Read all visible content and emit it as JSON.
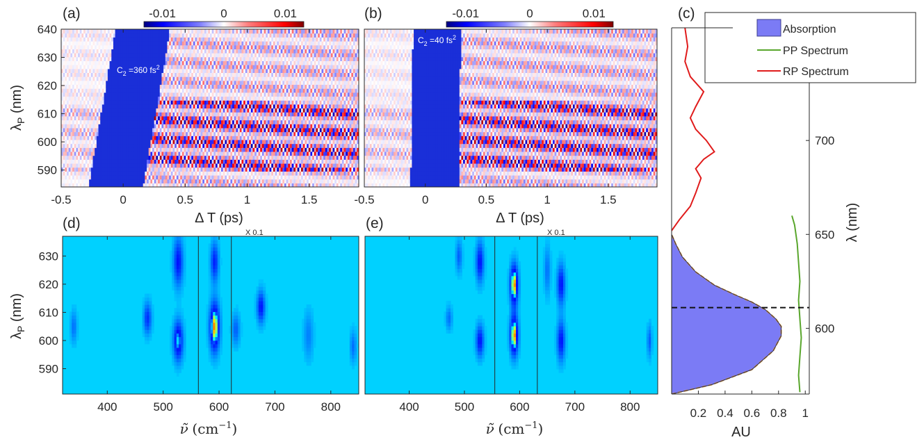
{
  "chart_data": [
    {
      "type": "heatmap",
      "panel": "(a)",
      "x_label": "Δ T (ps)",
      "y_label": "λP (nm)",
      "xlim": [
        -0.5,
        1.9
      ],
      "ylim": [
        584,
        640
      ],
      "x_ticks": [
        "-0.5",
        "0",
        "0.5",
        "1",
        "1.5"
      ],
      "y_ticks": [
        "590",
        "600",
        "610",
        "620",
        "630",
        "640"
      ],
      "annotation": "C2 =360 fs2",
      "colorbar": {
        "ticks": [
          "-0.01",
          "0",
          "0.01"
        ],
        "range": [
          -0.013,
          0.013
        ],
        "colors": [
          "#00007f",
          "#ffffff",
          "#7f0000"
        ]
      },
      "blank_region": {
        "x_start_ps_at_584nm": -0.28,
        "x_end_ps_at_584nm": 0.16,
        "x_start_ps_at_640nm": -0.06,
        "x_end_ps_at_640nm": 0.38
      },
      "band_strong_nm": [
        590,
        615
      ],
      "oscillation_period_ps": 0.056
    },
    {
      "type": "heatmap",
      "panel": "(b)",
      "x_label": "Δ T (ps)",
      "xlim": [
        -0.5,
        1.9
      ],
      "ylim": [
        584,
        640
      ],
      "x_ticks": [
        "-0.5",
        "0",
        "0.5",
        "1",
        "1.5"
      ],
      "annotation": "C2 =40 fs2",
      "colorbar": {
        "ticks": [
          "-0.01",
          "0",
          "0.01"
        ],
        "range": [
          -0.013,
          0.013
        ],
        "colors": [
          "#00007f",
          "#ffffff",
          "#7f0000"
        ]
      },
      "blank_region": {
        "x_start_ps_at_584nm": -0.12,
        "x_end_ps_at_584nm": 0.28,
        "x_start_ps_at_640nm": -0.1,
        "x_end_ps_at_640nm": 0.29
      },
      "band_strong_nm": [
        590,
        615
      ],
      "oscillation_period_ps": 0.056
    },
    {
      "type": "heatmap",
      "panel": "(d)",
      "x_label": "ν̃ (cm⁻¹)",
      "y_label": "λP (nm)",
      "xlim": [
        320,
        850
      ],
      "ylim": [
        581,
        637
      ],
      "x_ticks": [
        "400",
        "500",
        "600",
        "700",
        "800"
      ],
      "y_ticks": [
        "590",
        "600",
        "610",
        "620",
        "630"
      ],
      "scaled_box": {
        "x_range_cm": [
          563,
          622
        ],
        "label": "X 0.1"
      },
      "peaks": [
        {
          "cm": 527,
          "nm": 600,
          "amp": 0.75,
          "w_cm": 6,
          "w_nm": 5
        },
        {
          "cm": 527,
          "nm": 628,
          "amp": 0.6,
          "w_cm": 6,
          "w_nm": 6
        },
        {
          "cm": 592,
          "nm": 605,
          "amp": 1.0,
          "w_cm": 6,
          "w_nm": 6
        },
        {
          "cm": 592,
          "nm": 628,
          "amp": 0.55,
          "w_cm": 5,
          "w_nm": 5
        },
        {
          "cm": 675,
          "nm": 612,
          "amp": 0.6,
          "w_cm": 5,
          "w_nm": 4
        },
        {
          "cm": 472,
          "nm": 608,
          "amp": 0.5,
          "w_cm": 5,
          "w_nm": 4
        },
        {
          "cm": 340,
          "nm": 605,
          "amp": 0.3,
          "w_cm": 4,
          "w_nm": 4
        },
        {
          "cm": 630,
          "nm": 604,
          "amp": 0.35,
          "w_cm": 5,
          "w_nm": 4
        },
        {
          "cm": 760,
          "nm": 602,
          "amp": 0.25,
          "w_cm": 6,
          "w_nm": 6
        },
        {
          "cm": 840,
          "nm": 598,
          "amp": 0.3,
          "w_cm": 4,
          "w_nm": 4
        }
      ]
    },
    {
      "type": "heatmap",
      "panel": "(e)",
      "x_label": "ν̃ (cm⁻¹)",
      "xlim": [
        320,
        850
      ],
      "ylim": [
        581,
        637
      ],
      "x_ticks": [
        "400",
        "500",
        "600",
        "700",
        "800"
      ],
      "scaled_box": {
        "x_range_cm": [
          555,
          632
        ],
        "label": "X 0.1"
      },
      "peaks": [
        {
          "cm": 590,
          "nm": 620,
          "amp": 1.0,
          "w_cm": 5,
          "w_nm": 5
        },
        {
          "cm": 590,
          "nm": 602,
          "amp": 1.0,
          "w_cm": 5,
          "w_nm": 5
        },
        {
          "cm": 528,
          "nm": 628,
          "amp": 0.6,
          "w_cm": 5,
          "w_nm": 5
        },
        {
          "cm": 528,
          "nm": 600,
          "amp": 0.6,
          "w_cm": 5,
          "w_nm": 4
        },
        {
          "cm": 675,
          "nm": 620,
          "amp": 0.6,
          "w_cm": 5,
          "w_nm": 5
        },
        {
          "cm": 675,
          "nm": 600,
          "amp": 0.6,
          "w_cm": 5,
          "w_nm": 5
        },
        {
          "cm": 472,
          "nm": 608,
          "amp": 0.3,
          "w_cm": 4,
          "w_nm": 3
        },
        {
          "cm": 490,
          "nm": 630,
          "amp": 0.35,
          "w_cm": 4,
          "w_nm": 4
        },
        {
          "cm": 835,
          "nm": 600,
          "amp": 0.35,
          "w_cm": 3,
          "w_nm": 4
        },
        {
          "cm": 650,
          "nm": 625,
          "amp": 0.3,
          "w_cm": 4,
          "w_nm": 6
        }
      ]
    },
    {
      "type": "line",
      "panel": "(c)",
      "x_label": "AU",
      "y_label": "λ (nm)",
      "xlim": [
        0,
        1.03
      ],
      "ylim": [
        565,
        760
      ],
      "x_ticks": [
        "0.2",
        "0.4",
        "0.6",
        "0.8",
        "1"
      ],
      "y_ticks": [
        "600",
        "650",
        "700"
      ],
      "dashed_line_nm": 611,
      "legend": [
        "Absorption",
        "PP Spectrum",
        "RP Spectrum"
      ],
      "series": [
        {
          "name": "Absorption",
          "color": "#7b7bf5",
          "points": [
            [
              0.0,
              565
            ],
            [
              0.3,
              570
            ],
            [
              0.6,
              578
            ],
            [
              0.76,
              588
            ],
            [
              0.82,
              596
            ],
            [
              0.82,
              601
            ],
            [
              0.78,
              605
            ],
            [
              0.7,
              610
            ],
            [
              0.6,
              614
            ],
            [
              0.47,
              618
            ],
            [
              0.32,
              623
            ],
            [
              0.18,
              630
            ],
            [
              0.08,
              638
            ],
            [
              0.03,
              645
            ],
            [
              0.0,
              650
            ]
          ]
        },
        {
          "name": "PP Spectrum",
          "color": "#59a62c",
          "points": [
            [
              0.96,
              566
            ],
            [
              0.95,
              575
            ],
            [
              0.96,
              585
            ],
            [
              0.97,
              595
            ],
            [
              0.96,
              605
            ],
            [
              0.95,
              615
            ],
            [
              0.96,
              625
            ],
            [
              0.95,
              635
            ],
            [
              0.94,
              645
            ],
            [
              0.92,
              655
            ],
            [
              0.9,
              660
            ]
          ]
        },
        {
          "name": "RP Spectrum",
          "color": "#e01b1b",
          "points": [
            [
              0.0,
              652
            ],
            [
              0.06,
              658
            ],
            [
              0.14,
              665
            ],
            [
              0.18,
              672
            ],
            [
              0.22,
              680
            ],
            [
              0.18,
              685
            ],
            [
              0.24,
              690
            ],
            [
              0.32,
              694
            ],
            [
              0.26,
              700
            ],
            [
              0.18,
              706
            ],
            [
              0.14,
              712
            ],
            [
              0.18,
              718
            ],
            [
              0.24,
              726
            ],
            [
              0.14,
              734
            ],
            [
              0.1,
              742
            ],
            [
              0.12,
              750
            ],
            [
              0.1,
              760
            ]
          ]
        }
      ]
    }
  ]
}
